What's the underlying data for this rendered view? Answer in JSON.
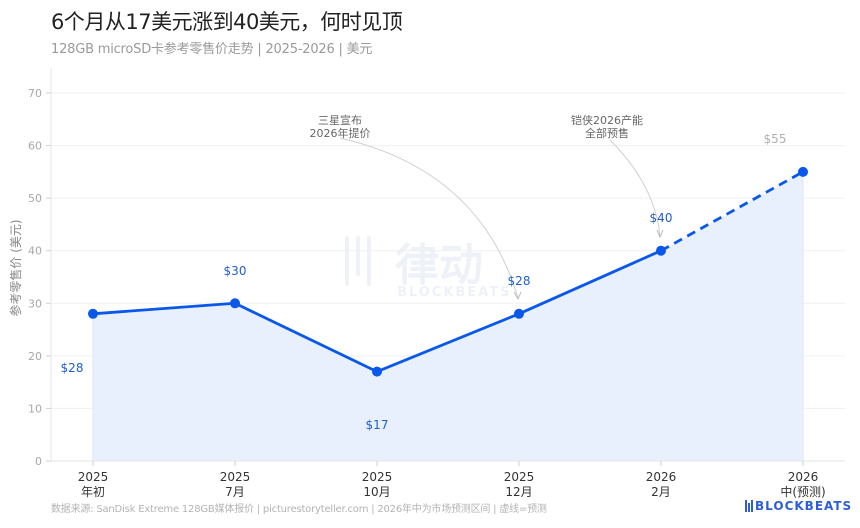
{
  "header": {
    "title": "6个月从17美元涨到40美元，何时见顶",
    "subtitle": "128GB microSD卡参考零售价走势 | 2025-2026 | 美元"
  },
  "footer": {
    "source": "数据来源: SanDisk Extreme 128GB媒体报价 | picturestoryteller.com | 2026年中为市场预测区间 | 虚线=预测",
    "brand": "BLOCKBEATS"
  },
  "watermark": {
    "cn": "律动",
    "en": "BLOCKBEATS"
  },
  "colors": {
    "line": "#0a58ea",
    "fill": "#e8f0fd",
    "label": "#1f5fd0",
    "forecast_label": "#b0b0b0",
    "grid": "#f0f0f0",
    "axis_text": "#a8a8a8"
  },
  "chart_data": {
    "type": "line",
    "title": "6个月从17美元涨到40美元，何时见顶",
    "subtitle": "128GB microSD卡参考零售价走势 | 2025-2026 | 美元",
    "xlabel": "",
    "ylabel": "参考零售价 (美元)",
    "ylim": [
      0,
      70
    ],
    "yticks": [
      0,
      10,
      20,
      30,
      40,
      50,
      60,
      70
    ],
    "grid": true,
    "categories": [
      "2025 年初",
      "2025 7月",
      "2025 10月",
      "2025 12月",
      "2026 2月",
      "2026 中(预测)"
    ],
    "category_lines": [
      [
        "2025",
        "年初"
      ],
      [
        "2025",
        "7月"
      ],
      [
        "2025",
        "10月"
      ],
      [
        "2025",
        "12月"
      ],
      [
        "2026",
        "2月"
      ],
      [
        "2026",
        "中(预测)"
      ]
    ],
    "series": [
      {
        "name": "参考零售价",
        "values": [
          28,
          30,
          17,
          28,
          40,
          55
        ],
        "data_labels": [
          "$28",
          "$30",
          "$17",
          "$28",
          "$40",
          "$55"
        ],
        "forecast_from_index": 4
      }
    ],
    "annotations": [
      {
        "text": [
          "三星宣布",
          "2026年提价"
        ],
        "target_index": 3
      },
      {
        "text": [
          "铠侠2026产能",
          "全部预售"
        ],
        "target_index": 4
      }
    ],
    "legend": "none"
  }
}
